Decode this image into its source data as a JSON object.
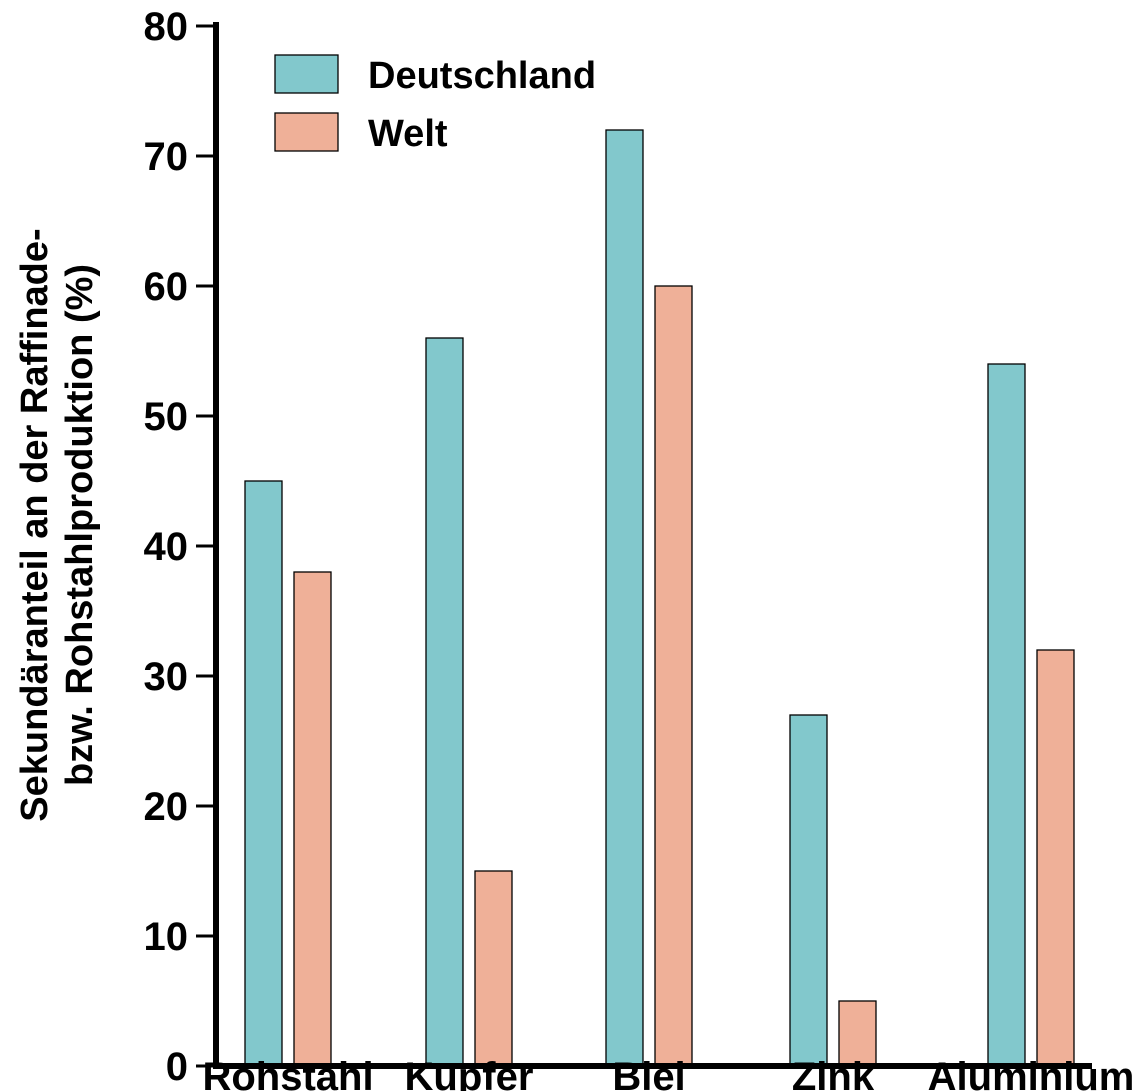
{
  "chart_data": {
    "type": "bar",
    "title": "",
    "xlabel": "",
    "ylabel_lines": [
      "Sekundäranteil an der Raffinade-",
      "bzw. Rohstahlproduktion (%)"
    ],
    "categories": [
      "Rohstahl",
      "Kupfer",
      "Blei",
      "Zink",
      "Aluminium"
    ],
    "series": [
      {
        "name": "Deutschland",
        "color": "#82C8CC",
        "values": [
          45,
          56,
          72,
          27,
          54
        ]
      },
      {
        "name": "Welt",
        "color": "#EFB098",
        "values": [
          38,
          15,
          60,
          5,
          32
        ]
      }
    ],
    "ylim": [
      0,
      80
    ],
    "yticks": [
      0,
      10,
      20,
      30,
      40,
      50,
      60,
      70,
      80
    ],
    "grid": false,
    "legend_position": "top-left"
  }
}
